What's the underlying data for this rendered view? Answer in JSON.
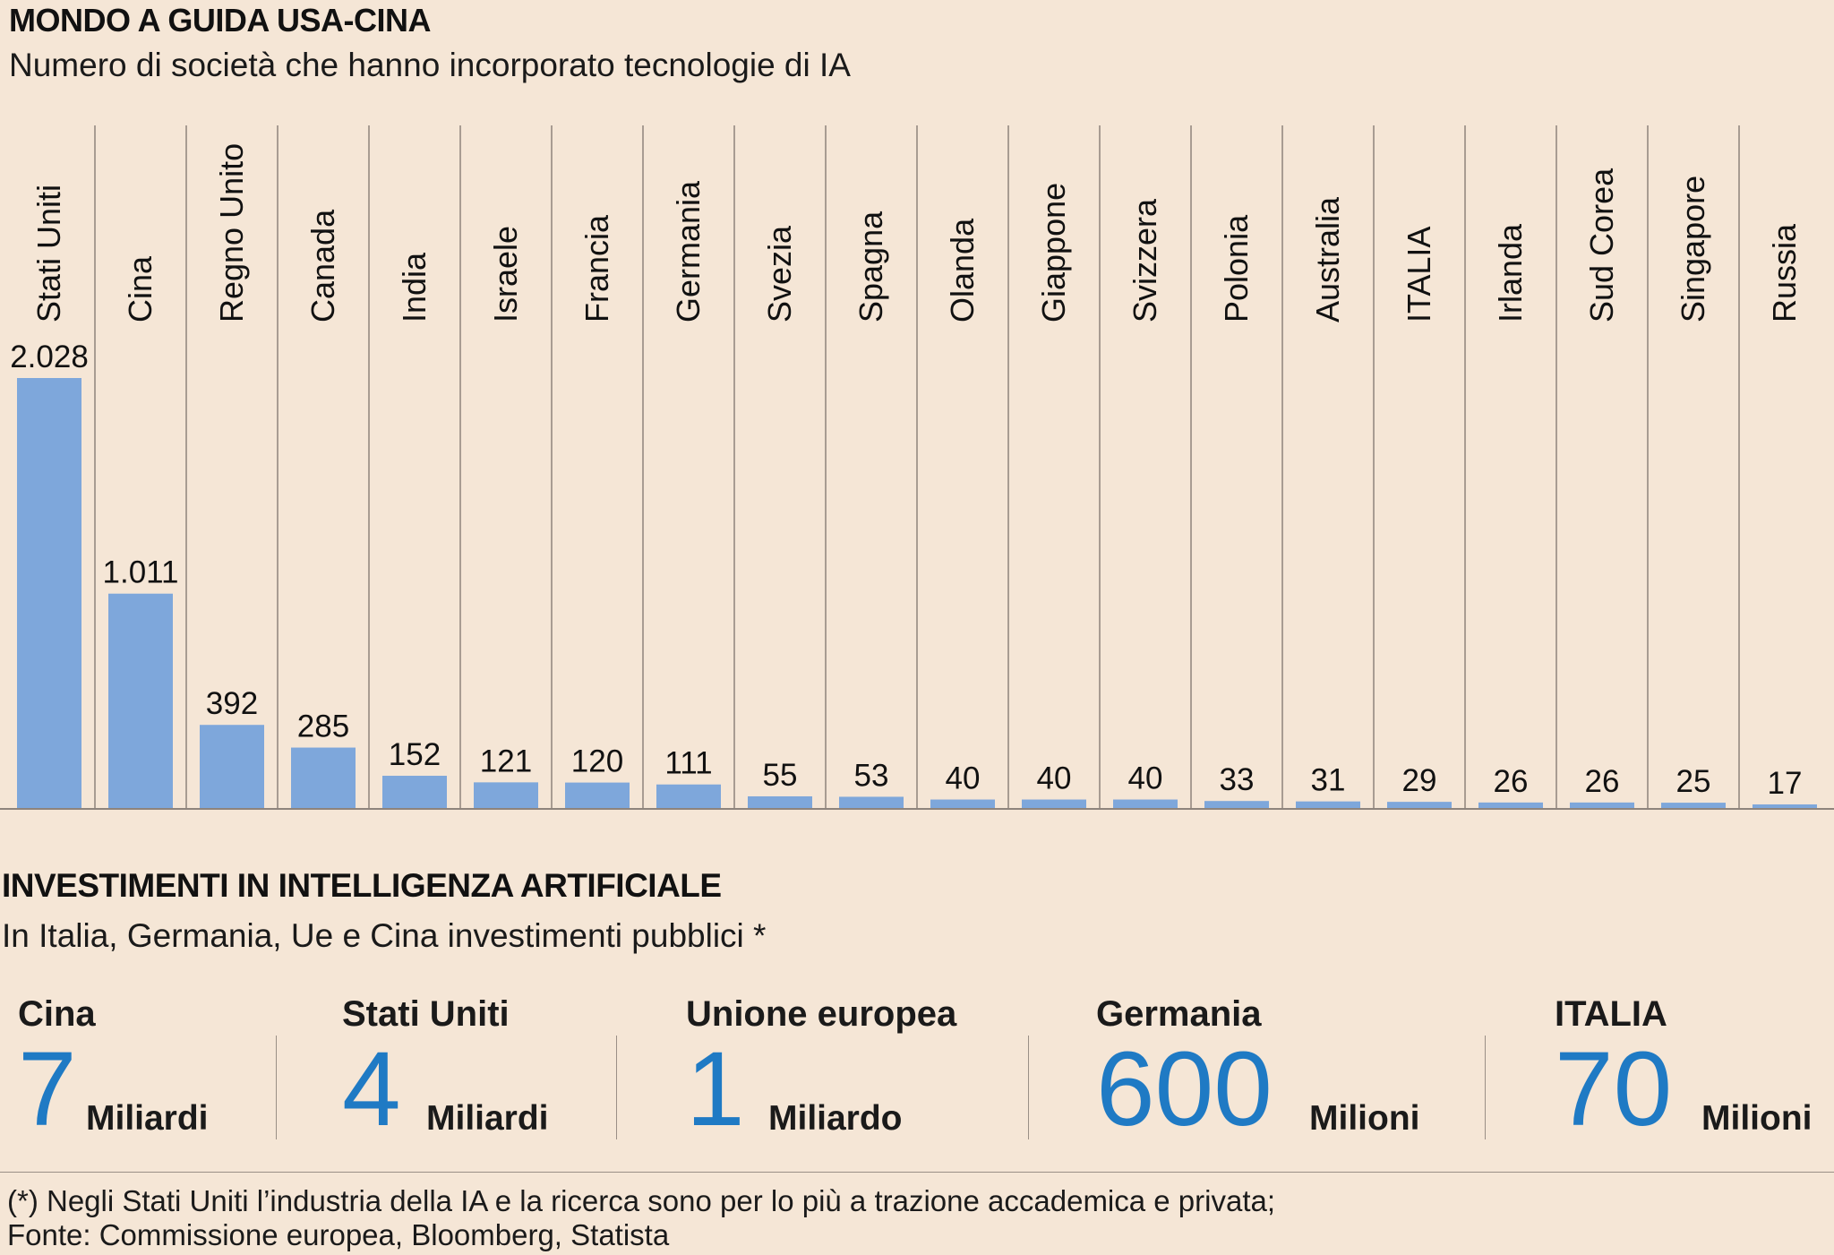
{
  "chart_data": {
    "type": "bar",
    "title": "MONDO A GUIDA USA-CINA",
    "subtitle": "Numero di società che hanno incorporato tecnologie di IA",
    "categories": [
      "Stati Uniti",
      "Cina",
      "Regno Unito",
      "Canada",
      "India",
      "Israele",
      "Francia",
      "Germania",
      "Svezia",
      "Spagna",
      "Olanda",
      "Giappone",
      "Svizzera",
      "Polonia",
      "Australia",
      "ITALIA",
      "Irlanda",
      "Sud Corea",
      "Singapore",
      "Russia"
    ],
    "values": [
      2028,
      1011,
      392,
      285,
      152,
      121,
      120,
      111,
      55,
      53,
      40,
      40,
      40,
      33,
      31,
      29,
      26,
      26,
      25,
      17
    ],
    "value_labels": [
      "2.028",
      "1.011",
      "392",
      "285",
      "152",
      "121",
      "120",
      "111",
      "55",
      "53",
      "40",
      "40",
      "40",
      "33",
      "31",
      "29",
      "26",
      "26",
      "25",
      "17"
    ],
    "xlabel": "",
    "ylabel": "",
    "ylim": [
      0,
      2028
    ],
    "grid": false,
    "bar_color": "#7ea7db"
  },
  "investments": {
    "title": "INVESTIMENTI IN INTELLIGENZA ARTIFICIALE",
    "subtitle": "In Italia, Germania, Ue e Cina investimenti pubblici *",
    "value_color": "#1f7ac4",
    "items": [
      {
        "country": "Cina",
        "value": "7",
        "unit": "Miliardi"
      },
      {
        "country": "Stati Uniti",
        "value": "4",
        "unit": "Miliardi"
      },
      {
        "country": "Unione europea",
        "value": "1",
        "unit": "Miliardo"
      },
      {
        "country": "Germania",
        "value": "600",
        "unit": "Milioni"
      },
      {
        "country": "ITALIA",
        "value": "70",
        "unit": "Milioni"
      }
    ]
  },
  "footer": {
    "note": "(*) Negli Stati Uniti l’industria della IA e la ricerca sono per lo più a trazione accademica e privata;",
    "source": "Fonte: Commissione europea, Bloomberg, Statista"
  }
}
